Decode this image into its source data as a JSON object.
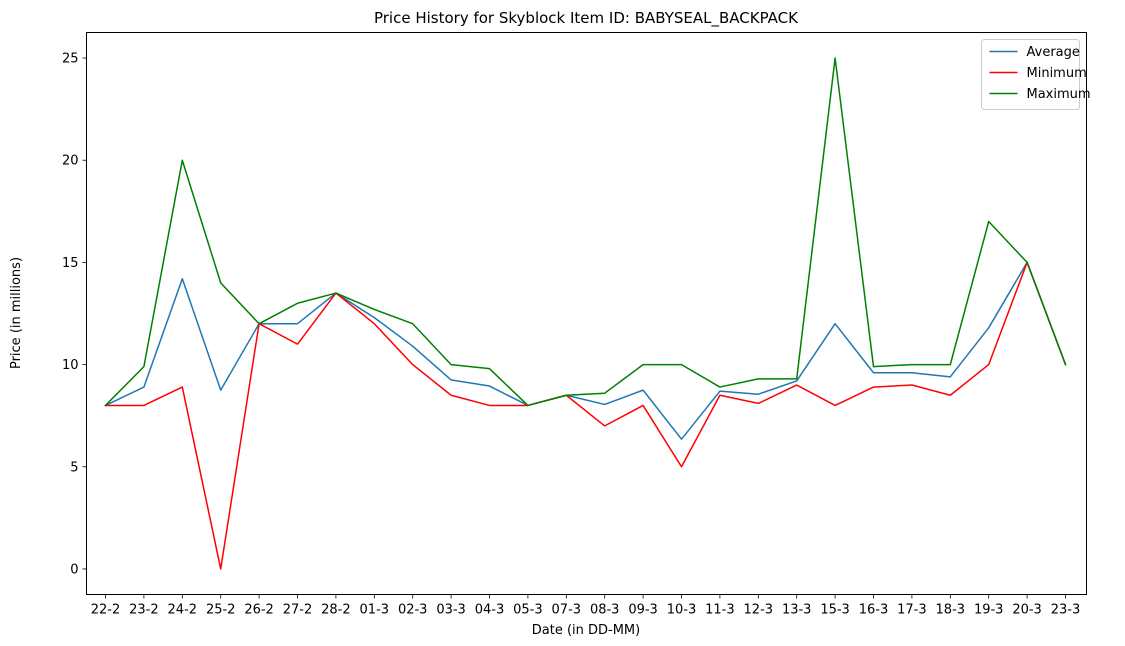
{
  "chart_data": {
    "type": "line",
    "title": "Price History for Skyblock Item ID: BABYSEAL_BACKPACK",
    "xlabel": "Date (in DD-MM)",
    "ylabel": "Price (in millions)",
    "categories": [
      "22-2",
      "23-2",
      "24-2",
      "25-2",
      "26-2",
      "27-2",
      "28-2",
      "01-3",
      "02-3",
      "03-3",
      "04-3",
      "05-3",
      "07-3",
      "08-3",
      "09-3",
      "10-3",
      "11-3",
      "12-3",
      "13-3",
      "15-3",
      "16-3",
      "17-3",
      "18-3",
      "19-3",
      "20-3",
      "23-3"
    ],
    "ylim": [
      -1.25,
      26.25
    ],
    "yticks": [
      0,
      5,
      10,
      15,
      20,
      25
    ],
    "grid": false,
    "legend_position": "top-right",
    "series": [
      {
        "name": "Average",
        "color": "#1f77b4",
        "values": [
          8.0,
          8.9,
          14.2,
          8.75,
          12.0,
          12.0,
          13.5,
          12.3,
          10.9,
          9.25,
          8.95,
          8.0,
          8.5,
          8.05,
          8.75,
          6.35,
          8.7,
          8.55,
          9.2,
          12.0,
          9.6,
          9.6,
          9.4,
          11.8,
          15.0,
          10.0
        ]
      },
      {
        "name": "Minimum",
        "color": "#ff0000",
        "values": [
          8.0,
          8.0,
          8.9,
          0.0,
          12.0,
          11.0,
          13.5,
          12.0,
          10.0,
          8.5,
          8.0,
          8.0,
          8.5,
          7.0,
          8.0,
          5.0,
          8.5,
          8.1,
          9.0,
          8.0,
          8.9,
          9.0,
          8.5,
          10.0,
          15.0,
          10.0
        ]
      },
      {
        "name": "Maximum",
        "color": "#008000",
        "values": [
          8.0,
          9.9,
          20.0,
          14.0,
          12.0,
          13.0,
          13.5,
          12.7,
          12.0,
          10.0,
          9.8,
          8.0,
          8.5,
          8.6,
          10.0,
          10.0,
          8.9,
          9.3,
          9.3,
          25.0,
          9.9,
          10.0,
          10.0,
          17.0,
          15.0,
          10.0
        ]
      }
    ]
  }
}
